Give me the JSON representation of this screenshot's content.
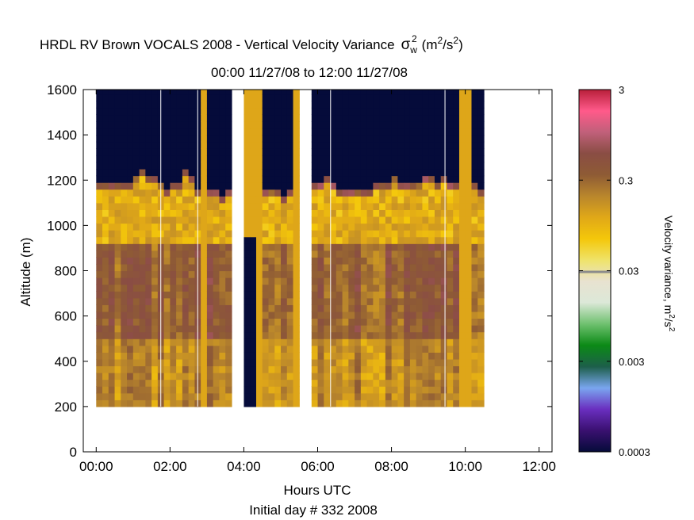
{
  "chart_data": {
    "type": "heatmap",
    "title": "HRDL RV Brown VOCALS 2008 - Vertical Velocity Variance",
    "title_symbol": "σ",
    "title_symbol_sub": "w",
    "title_symbol_sup": "2",
    "title_units_prefix": "(m",
    "title_units_sup1": "2",
    "title_units_mid": "/s",
    "title_units_sup2": "2",
    "title_units_suffix": ")",
    "subtitle": "00:00 11/27/08 to 12:00 11/27/08",
    "xlabel": "Hours UTC",
    "xlabel2": "Initial day # 332  2008",
    "ylabel": "Altitude (m)",
    "xlim": [
      -0.35,
      12.35
    ],
    "ylim": [
      0,
      1600
    ],
    "xticks": [
      0,
      2,
      4,
      6,
      8,
      10,
      12
    ],
    "xtick_labels": [
      "00:00",
      "02:00",
      "04:00",
      "06:00",
      "08:00",
      "10:00",
      "12:00"
    ],
    "yticks": [
      0,
      200,
      400,
      600,
      800,
      1000,
      1200,
      1400,
      1600
    ],
    "ytick_labels": [
      "0",
      "200",
      "400",
      "600",
      "800",
      "1000",
      "1200",
      "1400",
      "1600"
    ],
    "colorbar": {
      "label": "Velocity variance, m",
      "label_sup1": "2",
      "label_mid": "/s",
      "label_sup2": "2",
      "scale": "log",
      "range": [
        0.0003,
        3
      ],
      "ticks": [
        3,
        0.3,
        0.03,
        0.003,
        0.0003
      ],
      "tick_labels": [
        "3",
        "0.3",
        "0.03",
        "0.003",
        "0.0003"
      ],
      "colors": [
        "#050b3a",
        "#3a1070",
        "#6a2fc0",
        "#7aa6ef",
        "#1d5f4a",
        "#0b8a16",
        "#6fc16f",
        "#dce8d8",
        "#e8e2d0",
        "#efe36a",
        "#f4c70a",
        "#e0a818",
        "#b9862c",
        "#8e5b35",
        "#8a4d44",
        "#c0607a",
        "#ff5a8a",
        "#b81f3a"
      ]
    },
    "data": {
      "x_bin_hours": 0.1667,
      "z_bin_m": 30,
      "z_start_m": 200,
      "cloud_top_m": [
        1170,
        1190,
        1190,
        1170,
        1190,
        1190,
        1200,
        1230,
        1210,
        1200,
        1180,
        1160,
        1190,
        1180,
        1230,
        1210,
        1160,
        null,
        1150,
        1140,
        1130,
        1150,
        1160,
        1160,
        null,
        null,
        null,
        1150,
        1140,
        1150,
        1130,
        1150,
        null,
        1160,
        1180,
        1170,
        1190,
        1220,
        1180,
        1160,
        1150,
        1140,
        1160,
        1150,
        1150,
        1170,
        1190,
        1180,
        1200,
        1190,
        1180,
        1170,
        1190,
        1200,
        1200,
        1170,
        1200,
        1190,
        1180,
        null,
        null,
        1170,
        1160
      ],
      "gaps_hours": [
        [
          3.75,
          4.0
        ],
        [
          5.45,
          5.8
        ],
        [
          11.15,
          11.45
        ]
      ],
      "missing_segments": [
        {
          "x": [
            4.0,
            4.35
          ],
          "y": [
            200,
            950
          ]
        }
      ],
      "divider_lines_hours": [
        1.75,
        2.75,
        6.35,
        9.45
      ],
      "variance_by_layer_m2s2": {
        "200-500": 0.18,
        "500-900": 0.35,
        "900-1150": 0.12,
        "cloud_top_layer": 0.45,
        "above_cloud": 0.0003
      }
    }
  }
}
